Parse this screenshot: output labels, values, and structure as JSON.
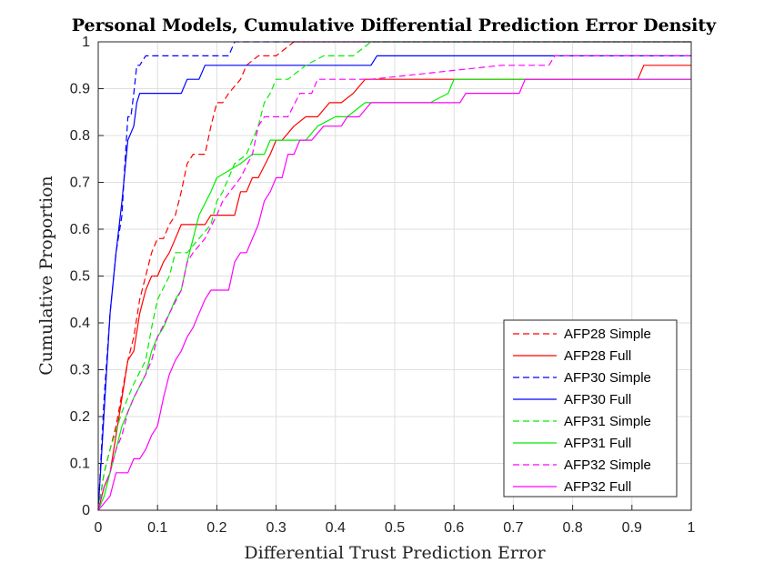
{
  "chart_data": {
    "type": "line",
    "title": "Personal Models, Cumulative Differential Prediction Error Density",
    "xlabel": "Differential Trust Prediction Error",
    "ylabel": "Cumulative Proportion",
    "xlim": [
      0,
      1
    ],
    "ylim": [
      0,
      1
    ],
    "xticks": [
      "0",
      "0.1",
      "0.2",
      "0.3",
      "0.4",
      "0.5",
      "0.6",
      "0.7",
      "0.8",
      "0.9",
      "1"
    ],
    "yticks": [
      "0",
      "0.1",
      "0.2",
      "0.3",
      "0.4",
      "0.5",
      "0.6",
      "0.7",
      "0.8",
      "0.9",
      "1"
    ],
    "grid": true,
    "legend_position": "bottom-right",
    "series": [
      {
        "name": "AFP28 Simple",
        "color": "#ff0000",
        "dash": true,
        "x": [
          0,
          0.01,
          0.02,
          0.03,
          0.04,
          0.05,
          0.06,
          0.07,
          0.08,
          0.09,
          0.1,
          0.11,
          0.12,
          0.13,
          0.14,
          0.15,
          0.16,
          0.18,
          0.19,
          0.2,
          0.21,
          0.22,
          0.24,
          0.25,
          0.27,
          0.3,
          0.33,
          0.35,
          1
        ],
        "y": [
          0,
          0.08,
          0.13,
          0.18,
          0.25,
          0.32,
          0.37,
          0.45,
          0.5,
          0.55,
          0.58,
          0.58,
          0.61,
          0.63,
          0.68,
          0.74,
          0.76,
          0.76,
          0.82,
          0.87,
          0.87,
          0.89,
          0.92,
          0.95,
          0.97,
          0.97,
          1,
          1,
          1
        ]
      },
      {
        "name": "AFP28 Full",
        "color": "#ff0000",
        "dash": false,
        "x": [
          0,
          0.01,
          0.02,
          0.03,
          0.04,
          0.05,
          0.06,
          0.07,
          0.08,
          0.09,
          0.1,
          0.11,
          0.12,
          0.13,
          0.14,
          0.15,
          0.16,
          0.18,
          0.19,
          0.2,
          0.21,
          0.22,
          0.23,
          0.24,
          0.25,
          0.26,
          0.27,
          0.29,
          0.3,
          0.31,
          0.33,
          0.35,
          0.37,
          0.39,
          0.41,
          0.43,
          0.45,
          0.91,
          0.92,
          1
        ],
        "y": [
          0,
          0.05,
          0.08,
          0.16,
          0.24,
          0.32,
          0.34,
          0.42,
          0.47,
          0.5,
          0.5,
          0.53,
          0.55,
          0.58,
          0.61,
          0.61,
          0.61,
          0.61,
          0.63,
          0.63,
          0.63,
          0.63,
          0.63,
          0.68,
          0.68,
          0.71,
          0.71,
          0.76,
          0.79,
          0.79,
          0.82,
          0.84,
          0.84,
          0.87,
          0.87,
          0.89,
          0.92,
          0.92,
          0.95,
          0.95
        ]
      },
      {
        "name": "AFP30 Simple",
        "color": "#0000ff",
        "dash": true,
        "x": [
          0,
          0.01,
          0.02,
          0.03,
          0.04,
          0.045,
          0.05,
          0.055,
          0.06,
          0.065,
          0.07,
          0.08,
          0.09,
          0.1,
          0.15,
          0.21,
          0.22,
          0.23,
          0.25,
          1
        ],
        "y": [
          0,
          0.24,
          0.42,
          0.55,
          0.63,
          0.74,
          0.84,
          0.84,
          0.89,
          0.95,
          0.95,
          0.97,
          0.97,
          0.97,
          0.97,
          0.97,
          0.97,
          1,
          1,
          1
        ]
      },
      {
        "name": "AFP30 Full",
        "color": "#0000ff",
        "dash": false,
        "x": [
          0,
          0.01,
          0.02,
          0.03,
          0.04,
          0.05,
          0.06,
          0.065,
          0.07,
          0.14,
          0.15,
          0.17,
          0.18,
          0.2,
          0.46,
          0.47,
          1
        ],
        "y": [
          0,
          0.21,
          0.42,
          0.55,
          0.66,
          0.79,
          0.82,
          0.87,
          0.89,
          0.89,
          0.92,
          0.92,
          0.95,
          0.95,
          0.95,
          0.97,
          0.97
        ]
      },
      {
        "name": "AFP31 Simple",
        "color": "#00ee00",
        "dash": true,
        "x": [
          0,
          0.01,
          0.02,
          0.04,
          0.06,
          0.08,
          0.09,
          0.1,
          0.12,
          0.13,
          0.15,
          0.17,
          0.19,
          0.2,
          0.21,
          0.22,
          0.23,
          0.25,
          0.27,
          0.28,
          0.29,
          0.3,
          0.32,
          0.35,
          0.38,
          0.43,
          0.46,
          0.5,
          1
        ],
        "y": [
          0,
          0.08,
          0.13,
          0.21,
          0.27,
          0.32,
          0.39,
          0.45,
          0.5,
          0.55,
          0.55,
          0.58,
          0.61,
          0.66,
          0.68,
          0.71,
          0.74,
          0.76,
          0.82,
          0.87,
          0.89,
          0.92,
          0.92,
          0.95,
          0.97,
          0.97,
          1,
          1,
          1
        ]
      },
      {
        "name": "AFP31 Full",
        "color": "#00ee00",
        "dash": false,
        "x": [
          0,
          0.01,
          0.02,
          0.03,
          0.04,
          0.06,
          0.08,
          0.09,
          0.1,
          0.11,
          0.12,
          0.13,
          0.14,
          0.15,
          0.16,
          0.17,
          0.19,
          0.2,
          0.24,
          0.26,
          0.28,
          0.29,
          0.32,
          0.35,
          0.37,
          0.4,
          0.42,
          0.45,
          0.46,
          0.56,
          0.59,
          0.6,
          0.62,
          0.85,
          1
        ],
        "y": [
          0,
          0.03,
          0.08,
          0.13,
          0.18,
          0.24,
          0.29,
          0.34,
          0.37,
          0.39,
          0.42,
          0.45,
          0.47,
          0.53,
          0.58,
          0.63,
          0.68,
          0.71,
          0.74,
          0.76,
          0.76,
          0.79,
          0.79,
          0.79,
          0.82,
          0.84,
          0.84,
          0.87,
          0.87,
          0.87,
          0.89,
          0.92,
          0.92,
          0.92,
          0.92
        ]
      },
      {
        "name": "AFP32 Simple",
        "color": "#ff00ff",
        "dash": true,
        "x": [
          0,
          0.01,
          0.02,
          0.03,
          0.04,
          0.05,
          0.06,
          0.08,
          0.09,
          0.1,
          0.12,
          0.14,
          0.15,
          0.16,
          0.18,
          0.2,
          0.21,
          0.24,
          0.26,
          0.27,
          0.28,
          0.29,
          0.32,
          0.34,
          0.36,
          0.37,
          0.38,
          0.43,
          0.46,
          0.68,
          0.72,
          0.76,
          0.77,
          0.78,
          1
        ],
        "y": [
          0,
          0.05,
          0.08,
          0.13,
          0.16,
          0.21,
          0.24,
          0.29,
          0.32,
          0.37,
          0.42,
          0.47,
          0.53,
          0.55,
          0.58,
          0.63,
          0.66,
          0.71,
          0.76,
          0.82,
          0.84,
          0.84,
          0.84,
          0.89,
          0.89,
          0.92,
          0.92,
          0.92,
          0.92,
          0.95,
          0.95,
          0.95,
          0.97,
          0.97,
          0.97
        ]
      },
      {
        "name": "AFP32 Full",
        "color": "#ff00ff",
        "dash": false,
        "x": [
          0,
          0.02,
          0.03,
          0.05,
          0.06,
          0.07,
          0.08,
          0.09,
          0.1,
          0.11,
          0.12,
          0.13,
          0.14,
          0.15,
          0.16,
          0.17,
          0.18,
          0.19,
          0.22,
          0.23,
          0.24,
          0.25,
          0.27,
          0.28,
          0.29,
          0.3,
          0.31,
          0.32,
          0.33,
          0.34,
          0.36,
          0.38,
          0.41,
          0.42,
          0.44,
          0.46,
          0.47,
          0.61,
          0.62,
          0.71,
          0.72,
          0.91,
          1
        ],
        "y": [
          0,
          0.03,
          0.08,
          0.08,
          0.11,
          0.11,
          0.13,
          0.16,
          0.18,
          0.24,
          0.29,
          0.32,
          0.34,
          0.37,
          0.39,
          0.42,
          0.45,
          0.47,
          0.47,
          0.53,
          0.55,
          0.55,
          0.61,
          0.66,
          0.68,
          0.71,
          0.71,
          0.76,
          0.76,
          0.79,
          0.79,
          0.82,
          0.82,
          0.84,
          0.84,
          0.87,
          0.87,
          0.87,
          0.89,
          0.89,
          0.92,
          0.92,
          0.92
        ]
      }
    ]
  }
}
